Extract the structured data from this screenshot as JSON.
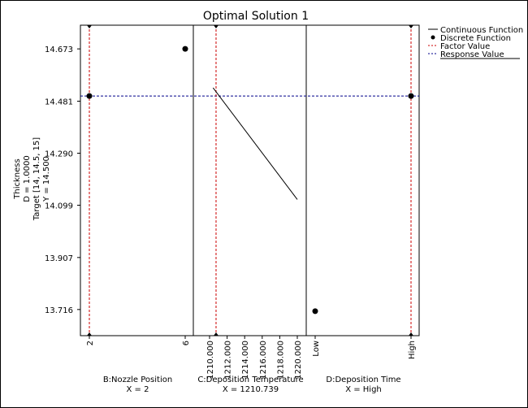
{
  "chart_data": {
    "type": "line",
    "title": "Optimal Solution 1",
    "ylabel_lines": [
      "Thickness",
      "D = 1.0000",
      "Target [14, 14.5, 15]",
      "Y = 14.500"
    ],
    "y_ticks": [
      "14.673",
      "14.481",
      "14.290",
      "14.099",
      "13.907",
      "13.716"
    ],
    "ylim": [
      13.62,
      14.76
    ],
    "response_value": 14.5,
    "legend": {
      "position": "top-right",
      "items": [
        {
          "label": "Continuous Function",
          "style": "solid-line",
          "color": "#000000"
        },
        {
          "label": "Discrete Function",
          "style": "dot",
          "color": "#000000"
        },
        {
          "label": "Factor Value",
          "style": "dashed-line",
          "color": "#cc0000"
        },
        {
          "label": "Response Value",
          "style": "dashed-line",
          "color": "#00008b"
        }
      ]
    },
    "panels": [
      {
        "id": "nozzle",
        "xlabel": "B:Nozzle Position",
        "setting": "X = 2",
        "ticks": [
          "2",
          "6"
        ],
        "factor_value": "2",
        "series": [
          {
            "kind": "discrete",
            "points": [
              {
                "x": "2",
                "y": 14.5
              },
              {
                "x": "6",
                "y": 14.673
              }
            ]
          }
        ]
      },
      {
        "id": "temperature",
        "xlabel": "C:Deposition Temperature",
        "setting": "X = 1210.739",
        "ticks": [
          "1210.000",
          "1212.000",
          "1214.000",
          "1216.000",
          "1218.000",
          "1220.000"
        ],
        "xlim": [
          1210,
          1220
        ],
        "factor_value": 1210.739,
        "series": [
          {
            "kind": "continuous",
            "points": [
              {
                "x": 1210.4,
                "y": 14.53
              },
              {
                "x": 1220,
                "y": 14.12
              }
            ]
          }
        ]
      },
      {
        "id": "time",
        "xlabel": "D:Deposition Time",
        "setting": "X = High",
        "ticks": [
          "Low",
          "High"
        ],
        "factor_value": "High",
        "series": [
          {
            "kind": "discrete",
            "points": [
              {
                "x": "Low",
                "y": 13.71
              },
              {
                "x": "High",
                "y": 14.5
              }
            ]
          }
        ]
      }
    ]
  },
  "colors": {
    "factor": "#cc0000",
    "response": "#00008b",
    "axis": "#000000"
  }
}
